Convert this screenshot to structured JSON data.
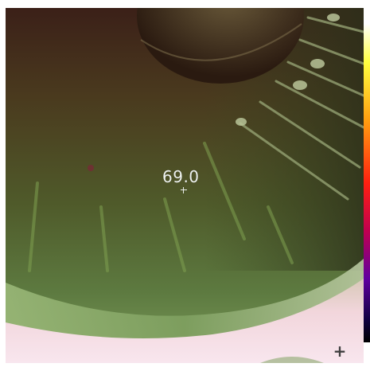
{
  "measurement": {
    "spot_value": "69.0"
  },
  "controls": {
    "add_spot_symbol": "+",
    "add_spot_icon": "plus-icon"
  },
  "palette": {
    "name": "iron",
    "colors": [
      "#ffffff",
      "#ffff40",
      "#ffa010",
      "#ff2010",
      "#c00050",
      "#6000a0",
      "#100040",
      "#000000"
    ]
  },
  "colors": {
    "hot_region": "#f4d8e2",
    "warm_region": "#5a7a40",
    "cool_region": "#3a2a18"
  }
}
